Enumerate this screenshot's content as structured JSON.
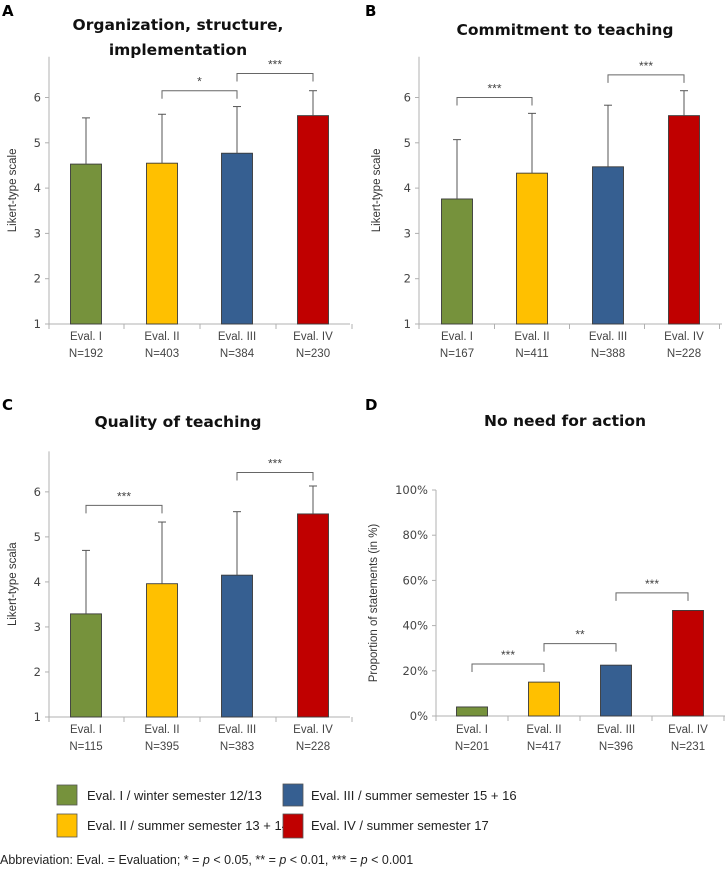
{
  "chart_data": [
    {
      "panel": "A",
      "type": "bar",
      "title": [
        "Organization, structure,",
        "implementation"
      ],
      "ylabel": "Likert-type scale",
      "ylim": [
        1,
        6.9
      ],
      "yticks": [
        1,
        2,
        3,
        4,
        5,
        6
      ],
      "categories": [
        "Eval. I",
        "Eval. II",
        "Eval. III",
        "Eval. IV"
      ],
      "n_labels": [
        "N=192",
        "N=403",
        "N=384",
        "N=230"
      ],
      "values": [
        4.53,
        4.55,
        4.77,
        5.6
      ],
      "error_upper": [
        5.55,
        5.63,
        5.8,
        6.15
      ],
      "significance": [
        {
          "from": 1,
          "to": 2,
          "label": "*",
          "level": 6.15
        },
        {
          "from": 2,
          "to": 3,
          "label": "***",
          "level": 6.53
        }
      ]
    },
    {
      "panel": "B",
      "type": "bar",
      "title": [
        "Commitment to teaching"
      ],
      "ylabel": "Likert-type scale",
      "ylim": [
        1,
        6.9
      ],
      "yticks": [
        1,
        2,
        3,
        4,
        5,
        6
      ],
      "categories": [
        "Eval. I",
        "Eval. II",
        "Eval. III",
        "Eval. IV"
      ],
      "n_labels": [
        "N=167",
        "N=411",
        "N=388",
        "N=228"
      ],
      "values": [
        3.76,
        4.33,
        4.47,
        5.6
      ],
      "error_upper": [
        5.07,
        5.65,
        5.83,
        6.15
      ],
      "significance": [
        {
          "from": 0,
          "to": 1,
          "label": "***",
          "level": 6.0
        },
        {
          "from": 2,
          "to": 3,
          "label": "***",
          "level": 6.5
        }
      ]
    },
    {
      "panel": "C",
      "type": "bar",
      "title": [
        "Quality of teaching"
      ],
      "ylabel": "Likert-type scala",
      "ylim": [
        1,
        6.9
      ],
      "yticks": [
        1,
        2,
        3,
        4,
        5,
        6
      ],
      "categories": [
        "Eval. I",
        "Eval. II",
        "Eval. III",
        "Eval. IV"
      ],
      "n_labels": [
        "N=115",
        "N=395",
        "N=383",
        "N=228"
      ],
      "values": [
        3.29,
        3.96,
        4.15,
        5.51
      ],
      "error_upper": [
        4.7,
        5.33,
        5.56,
        6.13
      ],
      "significance": [
        {
          "from": 0,
          "to": 1,
          "label": "***",
          "level": 5.7
        },
        {
          "from": 2,
          "to": 3,
          "label": "***",
          "level": 6.43
        }
      ]
    },
    {
      "panel": "D",
      "type": "bar",
      "title": [
        "No need for action"
      ],
      "ylabel": "Proportion of statements (in %)",
      "ylim": [
        0,
        100
      ],
      "yticks": [
        0,
        20,
        40,
        60,
        80,
        100
      ],
      "ytick_suffix": "%",
      "categories": [
        "Eval. I",
        "Eval. II",
        "Eval. III",
        "Eval. IV"
      ],
      "n_labels": [
        "N=201",
        "N=417",
        "N=396",
        "N=231"
      ],
      "values": [
        4,
        15,
        22.5,
        46.7
      ],
      "error_upper": null,
      "significance": [
        {
          "from": 0,
          "to": 1,
          "label": "***",
          "level": 23
        },
        {
          "from": 1,
          "to": 2,
          "label": "**",
          "level": 32
        },
        {
          "from": 2,
          "to": 3,
          "label": "***",
          "level": 54.5
        }
      ]
    }
  ],
  "colors": [
    "#76923c",
    "#ffc000",
    "#365f91",
    "#c00000"
  ],
  "legend": [
    {
      "label": "Eval. I / winter semester 12/13",
      "color": "#76923c"
    },
    {
      "label": "Eval. II / summer semester 13 + 14",
      "color": "#ffc000"
    },
    {
      "label": "Eval. III / summer semester 15 + 16",
      "color": "#365f91"
    },
    {
      "label": "Eval. IV / summer semester 17",
      "color": "#c00000"
    }
  ],
  "footnote": {
    "prefix": "Abbreviation: Eval. = Evaluation; * = ",
    "p": "p",
    "p1": " < 0.05, ** = ",
    "p2": " < 0.01, *** = ",
    "p3": " < 0.001"
  }
}
